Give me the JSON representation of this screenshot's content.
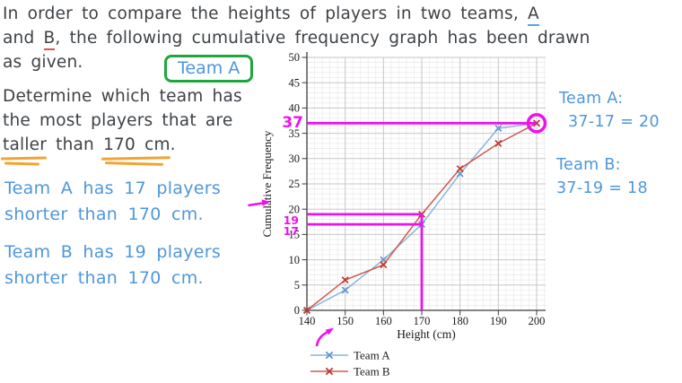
{
  "problem": {
    "line1_pre": "In order to compare the heights of players in two teams, ",
    "line1_teamA": "A",
    "line2_pre": "and ",
    "line2_teamB": "B",
    "line2_post": ", the following cumulative frequency graph has been drawn",
    "line3": "as given."
  },
  "answer_box": {
    "label": "Team A"
  },
  "question": {
    "line1": "Determine which team has",
    "line2": "the most players that are",
    "line3_taller": "taller",
    "line3_mid": " than ",
    "line3_value": "170 cm",
    "line3_end": "."
  },
  "notes": {
    "team_a_line1": "Team A has 17 players",
    "team_a_line2": "shorter than 170 cm.",
    "team_b_line1": "Team B has 19 players",
    "team_b_line2": "shorter than 170 cm."
  },
  "solution": {
    "team_a_label": "Team A:",
    "team_a_calc": "37-17 = 20",
    "team_b_label": "Team B:",
    "team_b_calc": "37-19 = 18"
  },
  "chart_data": {
    "type": "line",
    "x": [
      140,
      150,
      160,
      170,
      180,
      190,
      200
    ],
    "series": [
      {
        "name": "Team A",
        "color": "#8ab6dc",
        "marker_color": "#5e97cf",
        "values": [
          0,
          4,
          10,
          17,
          27,
          36,
          37
        ]
      },
      {
        "name": "Team B",
        "color": "#d05a50",
        "marker_color": "#c0392f",
        "values": [
          0,
          6,
          9,
          19,
          28,
          33,
          37
        ]
      }
    ],
    "xlabel": "Height (cm)",
    "ylabel": "Cumulative Frequency",
    "xlim": [
      140,
      200
    ],
    "ylim": [
      0,
      50
    ],
    "x_ticks": [
      140,
      150,
      160,
      170,
      180,
      190,
      200
    ],
    "y_ticks": [
      0,
      5,
      10,
      15,
      20,
      25,
      30,
      35,
      40,
      45,
      50
    ],
    "grid": "minor+major",
    "marker": "x",
    "legend_position": "bottom-left",
    "annotations": {
      "color": "#ec12ec",
      "label_37": "37",
      "label_19": "19",
      "label_17": "17",
      "hlines": [
        {
          "y": 37,
          "x_end": 200
        },
        {
          "y": 19,
          "x_end": 170
        },
        {
          "y": 17,
          "x_end": 170
        }
      ],
      "vline": {
        "x": 170,
        "y_top": 19
      },
      "circled_point": {
        "x": 200,
        "y": 37
      }
    }
  }
}
